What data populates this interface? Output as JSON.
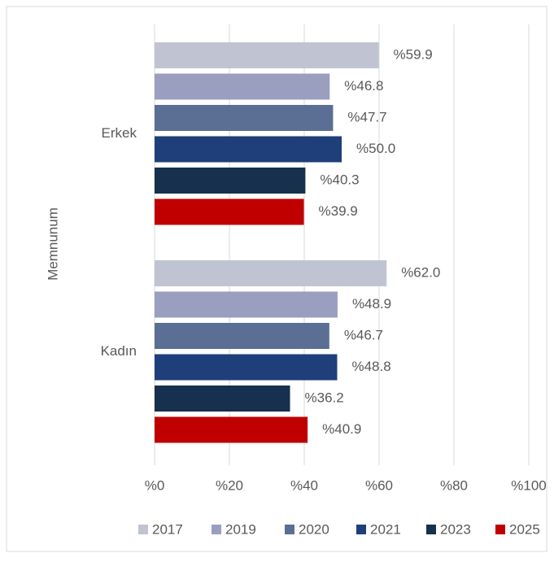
{
  "chart_data": {
    "type": "hbar",
    "y_label": "Memnunum",
    "categories": [
      "Erkek",
      "Kadın"
    ],
    "series": [
      {
        "name": "2017",
        "color": "#c0c4d2",
        "values": [
          59.9,
          62.0
        ],
        "value_labels": [
          "%59.9",
          "%62.0"
        ]
      },
      {
        "name": "2019",
        "color": "#9a9fbf",
        "values": [
          46.8,
          48.9
        ],
        "value_labels": [
          "%46.8",
          "%48.9"
        ]
      },
      {
        "name": "2020",
        "color": "#5a6f93",
        "values": [
          47.7,
          46.7
        ],
        "value_labels": [
          "%47.7",
          "%46.7"
        ]
      },
      {
        "name": "2021",
        "color": "#1f3f7a",
        "values": [
          50.0,
          48.8
        ],
        "value_labels": [
          "%50.0",
          "%48.8"
        ]
      },
      {
        "name": "2023",
        "color": "#16304d",
        "values": [
          40.3,
          36.2
        ],
        "value_labels": [
          "%40.3",
          "%36.2"
        ]
      },
      {
        "name": "2025",
        "color": "#c00000",
        "values": [
          39.9,
          40.9
        ],
        "value_labels": [
          "%39.9",
          "%40.9"
        ]
      }
    ],
    "xlim": [
      0,
      100
    ],
    "xticks": [
      {
        "value": 0,
        "label": "%0"
      },
      {
        "value": 20,
        "label": "%20"
      },
      {
        "value": 40,
        "label": "%40"
      },
      {
        "value": 60,
        "label": "%60"
      },
      {
        "value": 80,
        "label": "%80"
      },
      {
        "value": 100,
        "label": "%100"
      }
    ],
    "grid": true,
    "legend": "bottom"
  }
}
